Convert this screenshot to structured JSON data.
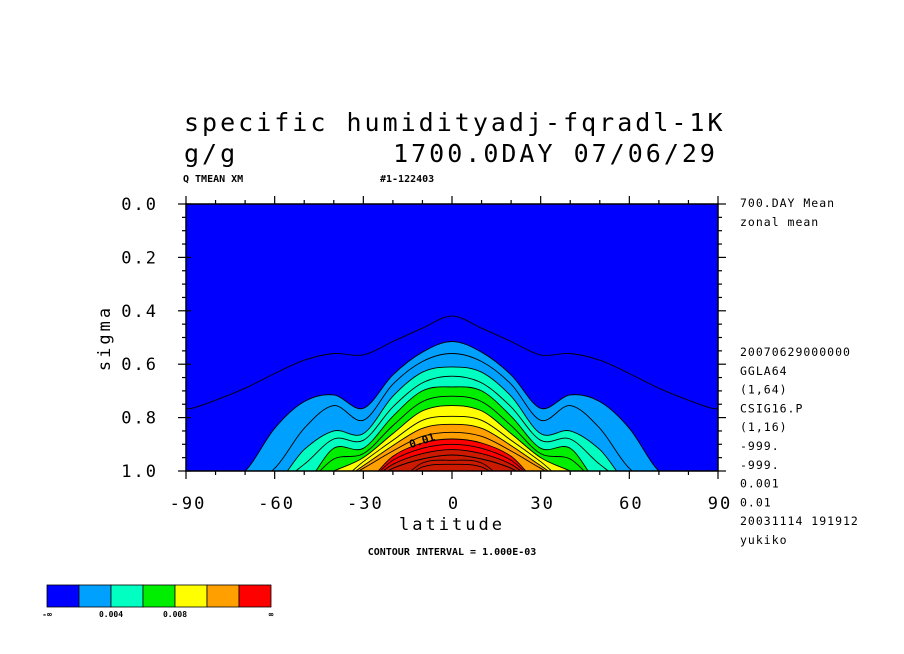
{
  "header": {
    "title_line1": "specific humidityadj-fqradl-1K",
    "title_line2_left": "g/g",
    "title_line2_right": "1700.0DAY 07/06/29",
    "label_left": "Q TMEAN XM",
    "label_right": "#1-122403"
  },
  "side_labels": {
    "top": [
      "700.DAY Mean",
      "zonal mean"
    ],
    "bottom": [
      "20070629000000",
      "GGLA64",
      "(1,64)",
      "CSIG16.P",
      "(1,16)",
      "-999.",
      "-999.",
      "0.001",
      "0.01",
      "20031114 191912",
      "yukiko"
    ]
  },
  "footer": {
    "contour_interval": "CONTOUR INTERVAL = 1.000E-03"
  },
  "chart_data": {
    "type": "heatmap",
    "variable": "specific humidity",
    "units": "g/g",
    "xlabel": "latitude",
    "ylabel": "sigma",
    "xlim": [
      -90,
      90
    ],
    "ylim": [
      1.0,
      0.0
    ],
    "x_ticks": [
      -90,
      -60,
      -30,
      0,
      30,
      60,
      90
    ],
    "x_tick_labels": [
      "-90",
      "-60",
      "-30",
      "0",
      "30",
      "60",
      "90"
    ],
    "y_ticks": [
      0.0,
      0.2,
      0.4,
      0.6,
      0.8,
      1.0
    ],
    "y_tick_labels": [
      "0.0",
      "0.2",
      "0.4",
      "0.6",
      "0.8",
      "1.0"
    ],
    "contour_interval": 0.001,
    "contour_label": "0.01",
    "latitudes": [
      -88,
      -80,
      -70,
      -60,
      -50,
      -40,
      -30,
      -20,
      -10,
      0,
      10,
      20,
      30,
      40,
      50,
      60,
      70,
      80,
      88
    ],
    "contour_sigma": [
      {
        "level": 0.0005,
        "sigma": [
          0.765,
          0.735,
          0.69,
          0.635,
          0.585,
          0.56,
          0.565,
          0.515,
          0.465,
          0.42,
          0.465,
          0.515,
          0.565,
          0.56,
          0.585,
          0.635,
          0.69,
          0.735,
          0.765
        ]
      },
      {
        "level": 0.001,
        "sigma": [
          1.05,
          1.05,
          1.0,
          0.84,
          0.74,
          0.715,
          0.765,
          0.64,
          0.555,
          0.515,
          0.555,
          0.64,
          0.765,
          0.715,
          0.74,
          0.84,
          1.0,
          1.05,
          1.05
        ]
      },
      {
        "level": 0.002,
        "sigma": [
          1.05,
          1.05,
          1.05,
          0.99,
          0.84,
          0.755,
          0.81,
          0.675,
          0.59,
          0.56,
          0.59,
          0.675,
          0.81,
          0.755,
          0.84,
          0.99,
          1.05,
          1.05,
          1.05
        ]
      },
      {
        "level": 0.003,
        "sigma": [
          1.05,
          1.05,
          1.05,
          1.05,
          0.92,
          0.85,
          0.86,
          0.72,
          0.63,
          0.61,
          0.63,
          0.72,
          0.86,
          0.85,
          0.92,
          1.05,
          1.05,
          1.05,
          1.05
        ]
      },
      {
        "level": 0.004,
        "sigma": [
          1.05,
          1.05,
          1.05,
          1.05,
          0.975,
          0.88,
          0.885,
          0.76,
          0.67,
          0.645,
          0.67,
          0.76,
          0.885,
          0.88,
          0.975,
          1.05,
          1.05,
          1.05,
          1.05
        ]
      },
      {
        "level": 0.005,
        "sigma": [
          1.05,
          1.05,
          1.05,
          1.05,
          1.05,
          0.915,
          0.915,
          0.795,
          0.7,
          0.685,
          0.7,
          0.795,
          0.915,
          0.915,
          1.05,
          1.05,
          1.05,
          1.05,
          1.05
        ]
      },
      {
        "level": 0.006,
        "sigma": [
          1.05,
          1.05,
          1.05,
          1.05,
          1.05,
          0.955,
          0.935,
          0.83,
          0.74,
          0.72,
          0.74,
          0.83,
          0.935,
          0.955,
          1.05,
          1.05,
          1.05,
          1.05,
          1.05
        ]
      },
      {
        "level": 0.007,
        "sigma": [
          1.05,
          1.05,
          1.05,
          1.05,
          1.05,
          1.0,
          0.95,
          0.86,
          0.775,
          0.755,
          0.775,
          0.86,
          0.95,
          1.0,
          1.05,
          1.05,
          1.05,
          1.05,
          1.05
        ]
      },
      {
        "level": 0.008,
        "sigma": [
          1.05,
          1.05,
          1.05,
          1.05,
          1.05,
          1.05,
          0.965,
          0.885,
          0.81,
          0.795,
          0.81,
          0.885,
          0.965,
          1.05,
          1.05,
          1.05,
          1.05,
          1.05,
          1.05
        ]
      },
      {
        "level": 0.009,
        "sigma": [
          1.05,
          1.05,
          1.05,
          1.05,
          1.05,
          1.05,
          0.98,
          0.905,
          0.84,
          0.825,
          0.84,
          0.905,
          0.98,
          1.05,
          1.05,
          1.05,
          1.05,
          1.05,
          1.05
        ]
      },
      {
        "level": 0.01,
        "sigma": [
          1.05,
          1.05,
          1.05,
          1.05,
          1.05,
          1.05,
          0.99,
          0.925,
          0.87,
          0.855,
          0.87,
          0.925,
          0.99,
          1.05,
          1.05,
          1.05,
          1.05,
          1.05,
          1.05
        ]
      },
      {
        "level": 0.011,
        "sigma": [
          1.05,
          1.05,
          1.05,
          1.05,
          1.05,
          1.05,
          1.05,
          0.945,
          0.895,
          0.88,
          0.895,
          0.945,
          1.05,
          1.05,
          1.05,
          1.05,
          1.05,
          1.05,
          1.05
        ]
      },
      {
        "level": 0.012,
        "sigma": [
          1.05,
          1.05,
          1.05,
          1.05,
          1.05,
          1.05,
          1.05,
          0.96,
          0.915,
          0.9,
          0.915,
          0.96,
          1.05,
          1.05,
          1.05,
          1.05,
          1.05,
          1.05,
          1.05
        ]
      },
      {
        "level": 0.013,
        "sigma": [
          1.05,
          1.05,
          1.05,
          1.05,
          1.05,
          1.05,
          1.05,
          0.975,
          0.935,
          0.92,
          0.935,
          0.975,
          1.05,
          1.05,
          1.05,
          1.05,
          1.05,
          1.05,
          1.05
        ]
      },
      {
        "level": 0.014,
        "sigma": [
          1.05,
          1.05,
          1.05,
          1.05,
          1.05,
          1.05,
          1.05,
          0.99,
          0.955,
          0.94,
          0.955,
          0.99,
          1.05,
          1.05,
          1.05,
          1.05,
          1.05,
          1.05,
          1.05
        ]
      },
      {
        "level": 0.015,
        "sigma": [
          1.05,
          1.05,
          1.05,
          1.05,
          1.05,
          1.05,
          1.05,
          1.05,
          0.97,
          0.96,
          0.97,
          1.05,
          1.05,
          1.05,
          1.05,
          1.05,
          1.05,
          1.05,
          1.05
        ]
      },
      {
        "level": 0.016,
        "sigma": [
          1.05,
          1.05,
          1.05,
          1.05,
          1.05,
          1.05,
          1.05,
          1.05,
          0.985,
          0.975,
          0.985,
          1.05,
          1.05,
          1.05,
          1.05,
          1.05,
          1.05,
          1.05,
          1.05
        ]
      }
    ],
    "fill_bands": [
      {
        "from": 0.0,
        "to": 0.001,
        "color": "#0000ff"
      },
      {
        "from": 0.001,
        "to": 0.003,
        "color": "#00a0ff"
      },
      {
        "from": 0.003,
        "to": 0.005,
        "color": "#00ffc0"
      },
      {
        "from": 0.005,
        "to": 0.007,
        "color": "#00ee00"
      },
      {
        "from": 0.007,
        "to": 0.009,
        "color": "#ffff00"
      },
      {
        "from": 0.009,
        "to": 0.011,
        "color": "#ffa000"
      },
      {
        "from": 0.011,
        "to": 0.017,
        "color": "#ff0000"
      },
      {
        "from": 0.013,
        "to": 0.017,
        "color": "#cc1a00"
      }
    ],
    "colorbar": {
      "colors": [
        "#0000ff",
        "#00a0ff",
        "#00ffc0",
        "#00ee00",
        "#ffff00",
        "#ffa000",
        "#ff0000"
      ],
      "labels": [
        "-∞",
        "0.004",
        "0.008",
        "∞"
      ]
    }
  }
}
